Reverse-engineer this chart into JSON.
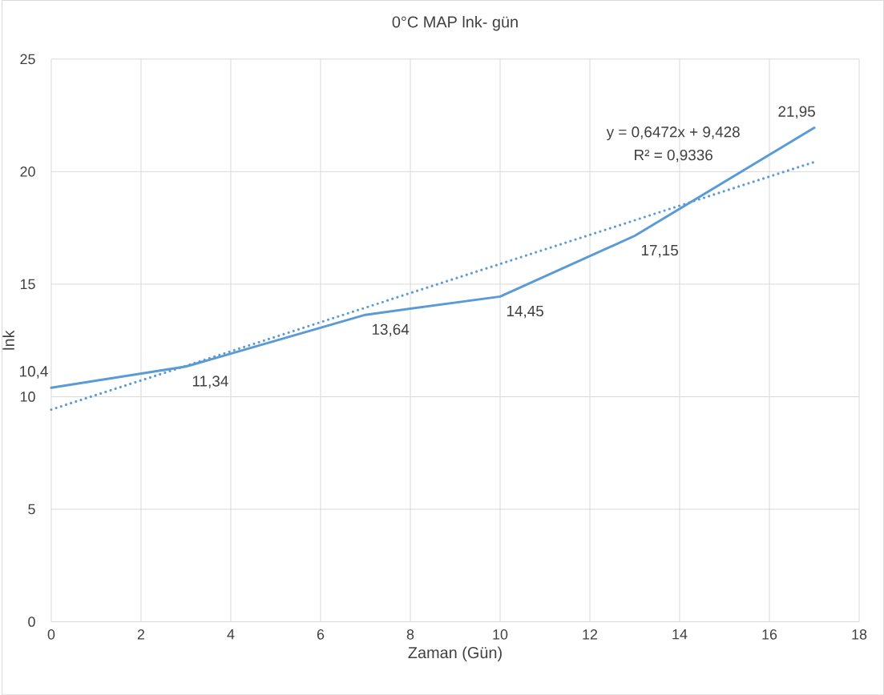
{
  "chart_data": {
    "type": "line",
    "title": "0°C MAP lnk- gün",
    "xlabel": "Zaman (Gün)",
    "ylabel": "lnk",
    "x": [
      0,
      3,
      7,
      10,
      13,
      17
    ],
    "series": [
      {
        "color": "#5b9bd5",
        "line_style": "solid",
        "values": [
          10.4,
          11.34,
          13.64,
          14.45,
          17.15,
          21.95
        ],
        "value_labels": [
          "10,4",
          "11,34",
          "13,64",
          "14,45",
          "17,15",
          "21,95"
        ]
      },
      {
        "type": "line",
        "x": [
          0,
          17
        ],
        "values": [
          9.43,
          20.43
        ],
        "color": "#5b9bd5",
        "line_style": "dotted"
      }
    ],
    "xlim": [
      0,
      18
    ],
    "ylim": [
      0,
      25
    ],
    "xticks": [
      0,
      2,
      4,
      6,
      8,
      10,
      12,
      14,
      16,
      18
    ],
    "yticks": [
      0,
      5,
      10,
      15,
      20,
      25
    ],
    "grid": true,
    "marker": "none",
    "annotations": [
      "y = 0,6472x + 9,428",
      "R² = 0,9336"
    ]
  }
}
